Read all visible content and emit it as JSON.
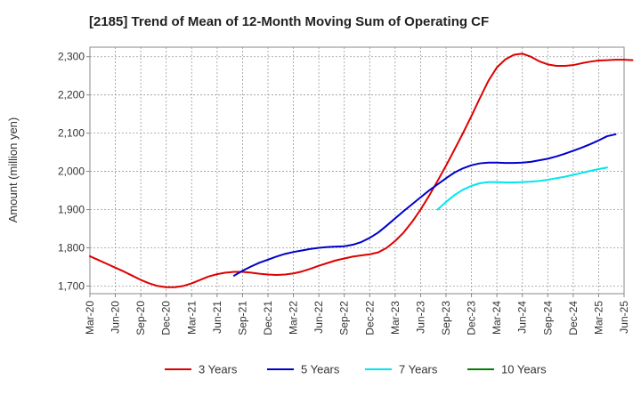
{
  "chart_data": {
    "type": "line",
    "title": "[2185]  Trend of Mean of 12-Month Moving Sum of Operating CF",
    "xlabel": "",
    "ylabel": "Amount (million yen)",
    "ylim": [
      1680,
      2325
    ],
    "yticks": [
      1700,
      1800,
      1900,
      2000,
      2100,
      2200,
      2300
    ],
    "ytick_labels": [
      "1,700",
      "1,800",
      "1,900",
      "2,000",
      "2,100",
      "2,200",
      "2,300"
    ],
    "xticks": [
      "Mar-20",
      "Jun-20",
      "Sep-20",
      "Dec-20",
      "Mar-21",
      "Jun-21",
      "Sep-21",
      "Dec-21",
      "Mar-22",
      "Jun-22",
      "Sep-22",
      "Dec-22",
      "Mar-23",
      "Jun-23",
      "Sep-23",
      "Dec-23",
      "Mar-24",
      "Jun-24",
      "Sep-24",
      "Dec-24",
      "Mar-25",
      "Jun-25"
    ],
    "grid": true,
    "legend_position": "bottom",
    "series": [
      {
        "name": "3 Years",
        "color": "#dd0000",
        "start": "Mar-20",
        "values": [
          1778,
          1768,
          1758,
          1748,
          1738,
          1727,
          1716,
          1707,
          1700,
          1697,
          1697,
          1700,
          1707,
          1716,
          1725,
          1731,
          1735,
          1737,
          1737,
          1735,
          1732,
          1730,
          1729,
          1730,
          1733,
          1738,
          1745,
          1753,
          1760,
          1767,
          1772,
          1777,
          1780,
          1783,
          1788,
          1800,
          1818,
          1840,
          1868,
          1900,
          1936,
          1975,
          2015,
          2057,
          2100,
          2145,
          2192,
          2237,
          2272,
          2293,
          2305,
          2308,
          2300,
          2288,
          2280,
          2276,
          2276,
          2278,
          2283,
          2287,
          2290,
          2291,
          2292,
          2292,
          2291
        ]
      },
      {
        "name": "5 Years",
        "color": "#0000cc",
        "start": "Aug-21",
        "values": [
          1727,
          1740,
          1751,
          1761,
          1769,
          1777,
          1784,
          1789,
          1793,
          1797,
          1800,
          1802,
          1803,
          1804,
          1808,
          1815,
          1826,
          1840,
          1858,
          1877,
          1896,
          1914,
          1932,
          1950,
          1966,
          1982,
          1997,
          2008,
          2016,
          2021,
          2023,
          2023,
          2022,
          2022,
          2023,
          2025,
          2029,
          2033,
          2039,
          2046,
          2054,
          2062,
          2071,
          2081,
          2092,
          2097
        ]
      },
      {
        "name": "7 Years",
        "color": "#00e5ee",
        "start": "Aug-23",
        "values": [
          1900,
          1920,
          1938,
          1952,
          1962,
          1969,
          1972,
          1972,
          1971,
          1971,
          1972,
          1973,
          1975,
          1978,
          1982,
          1986,
          1991,
          1996,
          2001,
          2006,
          2010
        ]
      },
      {
        "name": "10 Years",
        "color": "#008000",
        "start": "Mar-25",
        "values": []
      }
    ]
  }
}
